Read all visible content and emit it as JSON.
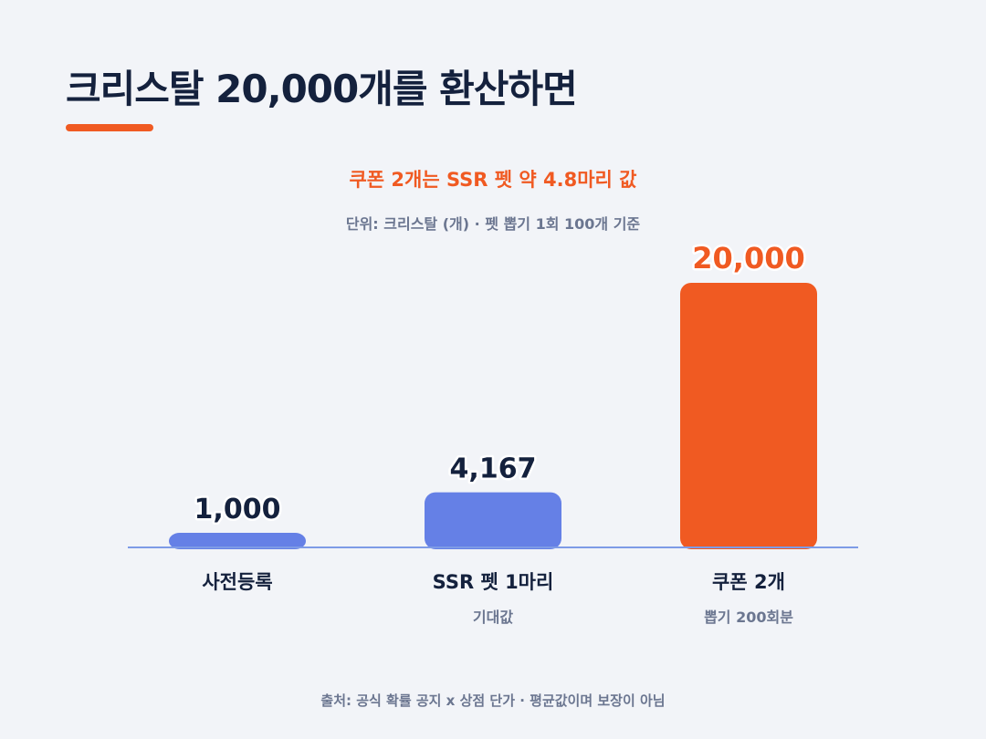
{
  "title": "크리스탈 20,000개를 환산하면",
  "subtitle": "쿠폰 2개는 SSR 펫 약 4.8마리 값",
  "unit_note": "단위: 크리스탈 (개) · 펫 뽑기 1회 100개 기준",
  "footer": "출처: 공식 확률 공지 x 상점 단가 · 평균값이며 보장이 아님",
  "colors": {
    "accent": "#f05a22",
    "bar_blue": "#6580e6",
    "baseline": "#7e9be6",
    "dark_text": "#14213d",
    "muted_text": "#6b7690"
  },
  "chart_data": {
    "type": "bar",
    "categories": [
      "사전등록",
      "SSR 펫 1마리",
      "쿠폰 2개"
    ],
    "sublabels": [
      "",
      "기대값",
      "뽑기 200회분"
    ],
    "values": [
      1000,
      4167,
      20000
    ],
    "value_labels": [
      "1,000",
      "4,167",
      "20,000"
    ],
    "bar_colors": [
      "#6580e6",
      "#6580e6",
      "#f05a22"
    ],
    "value_label_colors": [
      "#14213d",
      "#14213d",
      "#f05a22"
    ],
    "ylim": [
      0,
      20000
    ],
    "grid": false
  }
}
